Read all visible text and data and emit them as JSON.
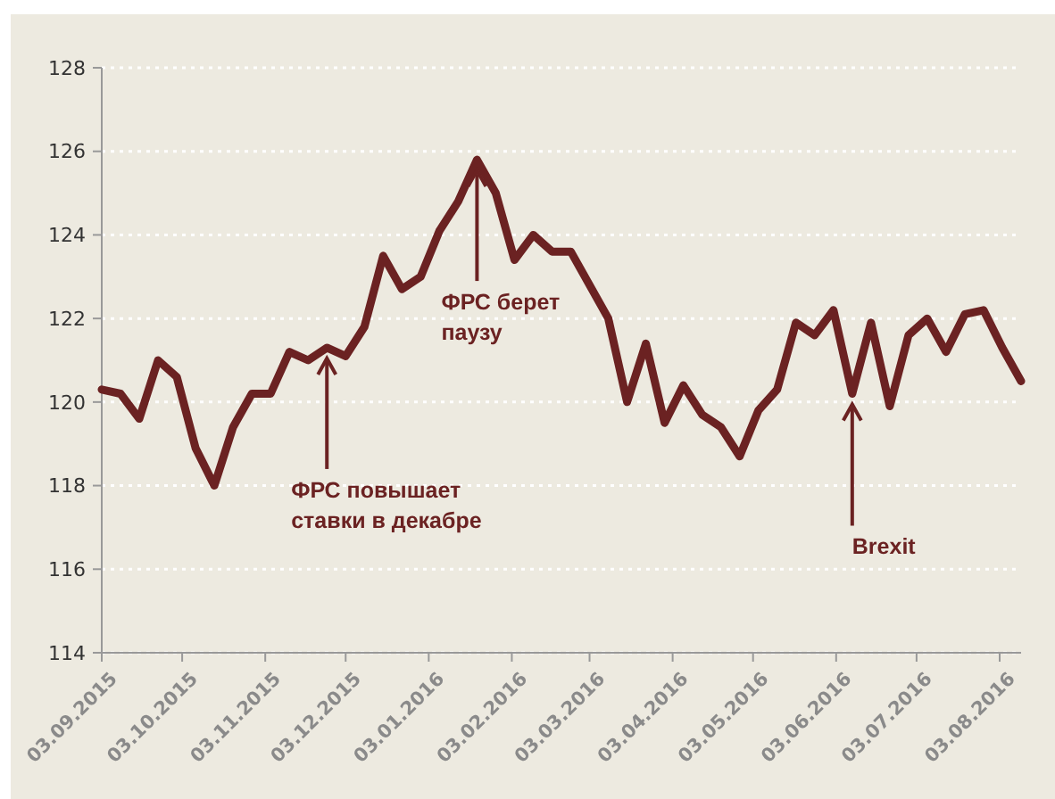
{
  "chart_data": {
    "type": "line",
    "x": [
      "2015-09-03",
      "2015-09-10",
      "2015-09-17",
      "2015-09-24",
      "2015-10-01",
      "2015-10-08",
      "2015-10-15",
      "2015-10-22",
      "2015-10-29",
      "2015-11-05",
      "2015-11-12",
      "2015-11-19",
      "2015-11-26",
      "2015-12-03",
      "2015-12-10",
      "2015-12-17",
      "2015-12-24",
      "2015-12-31",
      "2016-01-07",
      "2016-01-14",
      "2016-01-21",
      "2016-01-28",
      "2016-02-04",
      "2016-02-11",
      "2016-02-18",
      "2016-02-25",
      "2016-03-03",
      "2016-03-10",
      "2016-03-17",
      "2016-03-24",
      "2016-03-31",
      "2016-04-07",
      "2016-04-14",
      "2016-04-21",
      "2016-04-28",
      "2016-05-05",
      "2016-05-12",
      "2016-05-19",
      "2016-05-26",
      "2016-06-02",
      "2016-06-09",
      "2016-06-16",
      "2016-06-23",
      "2016-06-30",
      "2016-07-07",
      "2016-07-14",
      "2016-07-21",
      "2016-07-28",
      "2016-08-04",
      "2016-08-11"
    ],
    "series": [
      {
        "color": "#6b2222",
        "values": [
          120.3,
          120.2,
          119.6,
          121.0,
          120.6,
          118.9,
          118.0,
          119.4,
          120.2,
          120.2,
          121.2,
          121.0,
          121.3,
          121.1,
          121.8,
          123.5,
          122.7,
          123.0,
          124.1,
          124.8,
          125.8,
          125.0,
          123.4,
          124.0,
          123.6,
          123.6,
          122.8,
          122.0,
          120.0,
          121.4,
          119.5,
          120.4,
          119.7,
          119.4,
          118.7,
          119.8,
          120.3,
          121.9,
          121.6,
          122.2,
          120.2,
          121.9,
          119.9,
          121.6,
          122.0,
          121.2,
          122.1,
          122.2,
          121.3,
          120.5
        ]
      }
    ],
    "xlim": [
      "2015-09-03",
      "2016-08-11"
    ],
    "xticks": [
      {
        "value": "2015-09-03",
        "label": "03.09.2015"
      },
      {
        "value": "2015-10-03",
        "label": "03.10.2015"
      },
      {
        "value": "2015-11-03",
        "label": "03.11.2015"
      },
      {
        "value": "2015-12-03",
        "label": "03.12.2015"
      },
      {
        "value": "2016-01-03",
        "label": "03.01.2016"
      },
      {
        "value": "2016-02-03",
        "label": "03.02.2016"
      },
      {
        "value": "2016-03-03",
        "label": "03.03.2016"
      },
      {
        "value": "2016-04-03",
        "label": "03.04.2016"
      },
      {
        "value": "2016-05-03",
        "label": "03.05.2016"
      },
      {
        "value": "2016-06-03",
        "label": "03.06.2016"
      },
      {
        "value": "2016-07-03",
        "label": "03.07.2016"
      },
      {
        "value": "2016-08-03",
        "label": "03.08.2016"
      }
    ],
    "ylim": [
      114,
      128
    ],
    "yticks": [
      114,
      116,
      118,
      120,
      122,
      124,
      126,
      128
    ],
    "grid": "y",
    "line_style": "solid",
    "marker": "none",
    "annotations": [
      {
        "text": "ФРС повышает\nставки в декабре",
        "x": "2015-11-26",
        "y": 121.3
      },
      {
        "text": "ФРС берет\nпаузу",
        "x": "2016-01-21",
        "y": 125.8
      },
      {
        "text": "Brexit",
        "x": "2016-06-09",
        "y": 120.2
      }
    ]
  }
}
